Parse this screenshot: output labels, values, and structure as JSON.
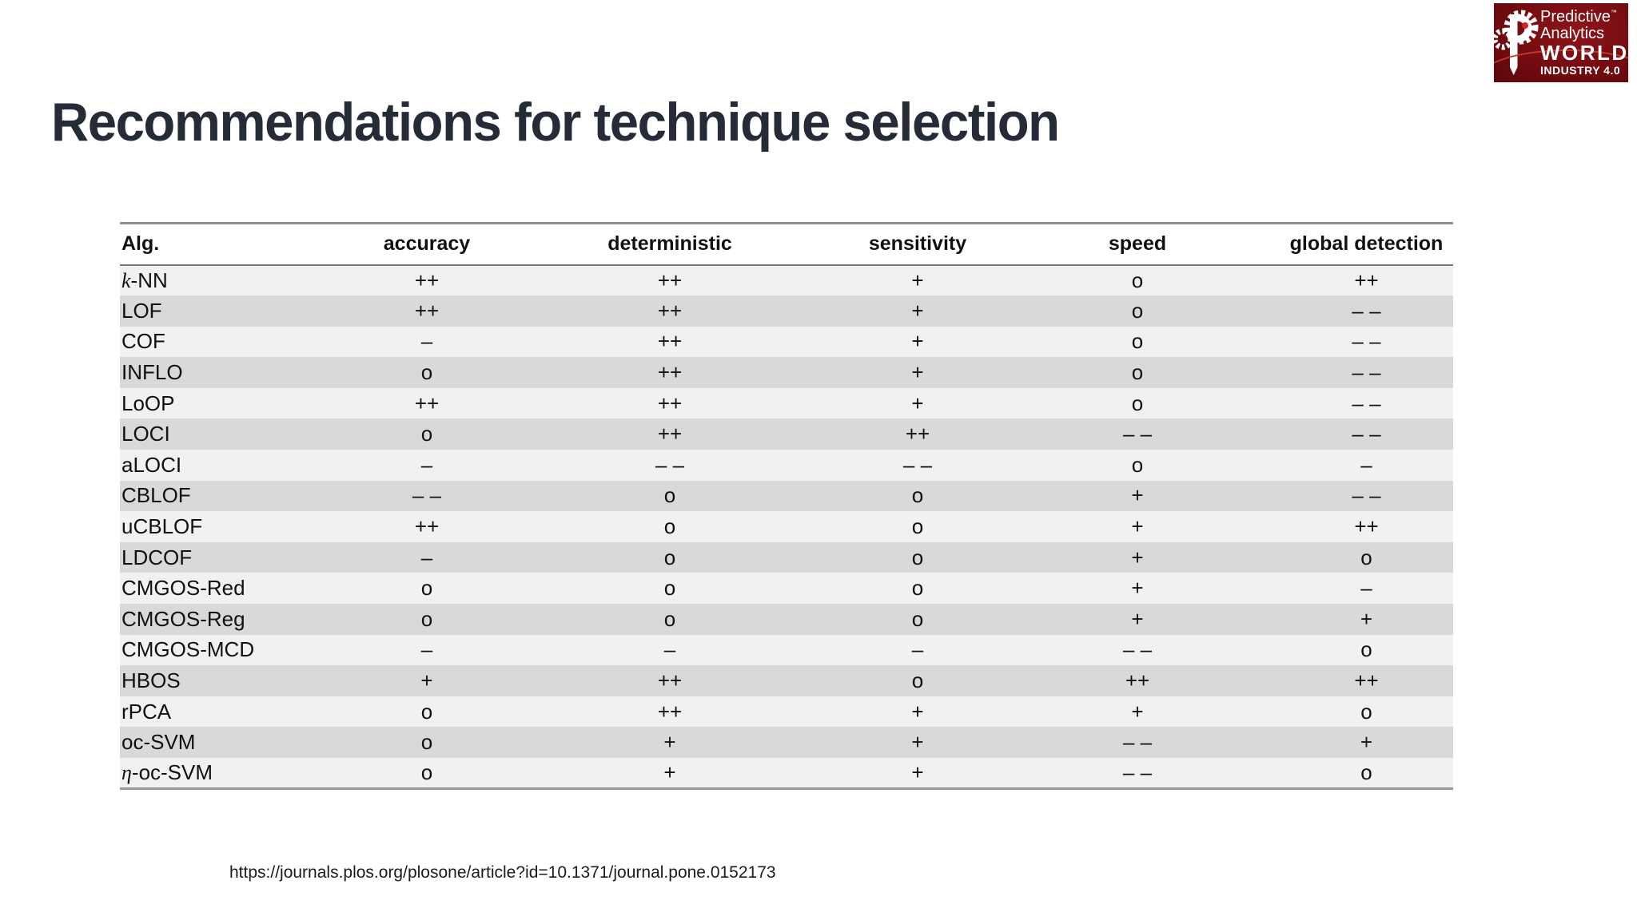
{
  "slide": {
    "title": "Recommendations for technique selection",
    "source_url": "https://journals.plos.org/plosone/article?id=10.1371/journal.pone.0152173"
  },
  "logo": {
    "line1": "Predictive",
    "trademark": "™",
    "line2": "Analytics",
    "line3": "WORLD",
    "line4": "INDUSTRY 4.0",
    "icon": "gear-p-icon",
    "bg_color": "#740c11",
    "arc_color": "#c5372c",
    "text_color": "#ffffff"
  },
  "colors": {
    "title_text": "#262b38",
    "row_light": "#f1f1f0",
    "row_dark": "#d9d9d9",
    "table_border": "#8f8f8f"
  },
  "table": {
    "columns": [
      "Alg.",
      "accuracy",
      "deterministic",
      "sensitivity",
      "speed",
      "global detection"
    ],
    "rating_scale": [
      "++",
      "+",
      "o",
      "–",
      "– –"
    ],
    "rows": [
      {
        "alg": "k-NN",
        "italic_first": true,
        "values": [
          "++",
          "++",
          "+",
          "o",
          "++"
        ]
      },
      {
        "alg": "LOF",
        "italic_first": false,
        "values": [
          "++",
          "++",
          "+",
          "o",
          "– –"
        ]
      },
      {
        "alg": "COF",
        "italic_first": false,
        "values": [
          "–",
          "++",
          "+",
          "o",
          "– –"
        ]
      },
      {
        "alg": "INFLO",
        "italic_first": false,
        "values": [
          "o",
          "++",
          "+",
          "o",
          "– –"
        ]
      },
      {
        "alg": "LoOP",
        "italic_first": false,
        "values": [
          "++",
          "++",
          "+",
          "o",
          "– –"
        ]
      },
      {
        "alg": "LOCI",
        "italic_first": false,
        "values": [
          "o",
          "++",
          "++",
          "– –",
          "– –"
        ]
      },
      {
        "alg": "aLOCI",
        "italic_first": false,
        "values": [
          "–",
          "– –",
          "– –",
          "o",
          "–"
        ]
      },
      {
        "alg": "CBLOF",
        "italic_first": false,
        "values": [
          "– –",
          "o",
          "o",
          "+",
          "– –"
        ]
      },
      {
        "alg": "uCBLOF",
        "italic_first": false,
        "values": [
          "++",
          "o",
          "o",
          "+",
          "++"
        ]
      },
      {
        "alg": "LDCOF",
        "italic_first": false,
        "values": [
          "–",
          "o",
          "o",
          "+",
          "o"
        ]
      },
      {
        "alg": "CMGOS-Red",
        "italic_first": false,
        "values": [
          "o",
          "o",
          "o",
          "+",
          "–"
        ]
      },
      {
        "alg": "CMGOS-Reg",
        "italic_first": false,
        "values": [
          "o",
          "o",
          "o",
          "+",
          "+"
        ]
      },
      {
        "alg": "CMGOS-MCD",
        "italic_first": false,
        "values": [
          "–",
          "–",
          "–",
          "– –",
          "o"
        ]
      },
      {
        "alg": "HBOS",
        "italic_first": false,
        "values": [
          "+",
          "++",
          "o",
          "++",
          "++"
        ]
      },
      {
        "alg": "rPCA",
        "italic_first": false,
        "values": [
          "o",
          "++",
          "+",
          "+",
          "o"
        ]
      },
      {
        "alg": "oc-SVM",
        "italic_first": false,
        "values": [
          "o",
          "+",
          "+",
          "– –",
          "+"
        ]
      },
      {
        "alg": "η-oc-SVM",
        "italic_first": true,
        "values": [
          "o",
          "+",
          "+",
          "– –",
          "o"
        ]
      }
    ]
  }
}
